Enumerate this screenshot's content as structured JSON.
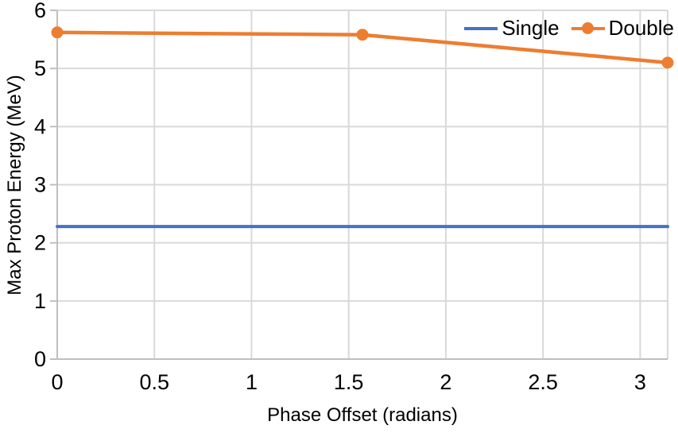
{
  "chart_data": {
    "type": "line",
    "title": "",
    "xlabel": "Phase Offset (radians)",
    "ylabel": "Max Proton Energy (MeV)",
    "xlim": [
      0,
      3.1416
    ],
    "ylim": [
      0,
      6
    ],
    "x_ticks": [
      0,
      0.5,
      1,
      1.5,
      2,
      2.5,
      3
    ],
    "y_ticks": [
      0,
      1,
      2,
      3,
      4,
      5,
      6
    ],
    "grid": true,
    "legend_position": "inside-top-right",
    "series": [
      {
        "name": "Single",
        "color": "#4472C4",
        "marker": "none",
        "line_width": 4,
        "x": [
          0,
          1.5708,
          3.1416
        ],
        "y": [
          2.28,
          2.28,
          2.28
        ]
      },
      {
        "name": "Double",
        "color": "#ED7D31",
        "marker": "circle",
        "marker_radius": 7.5,
        "line_width": 4.5,
        "x": [
          0,
          1.5708,
          3.1416
        ],
        "y": [
          5.62,
          5.58,
          5.1
        ]
      }
    ]
  },
  "colors": {
    "gridline": "#D9D9D9",
    "axis": "#BFBFBF",
    "text": "#000000",
    "background": "#FFFFFF"
  }
}
